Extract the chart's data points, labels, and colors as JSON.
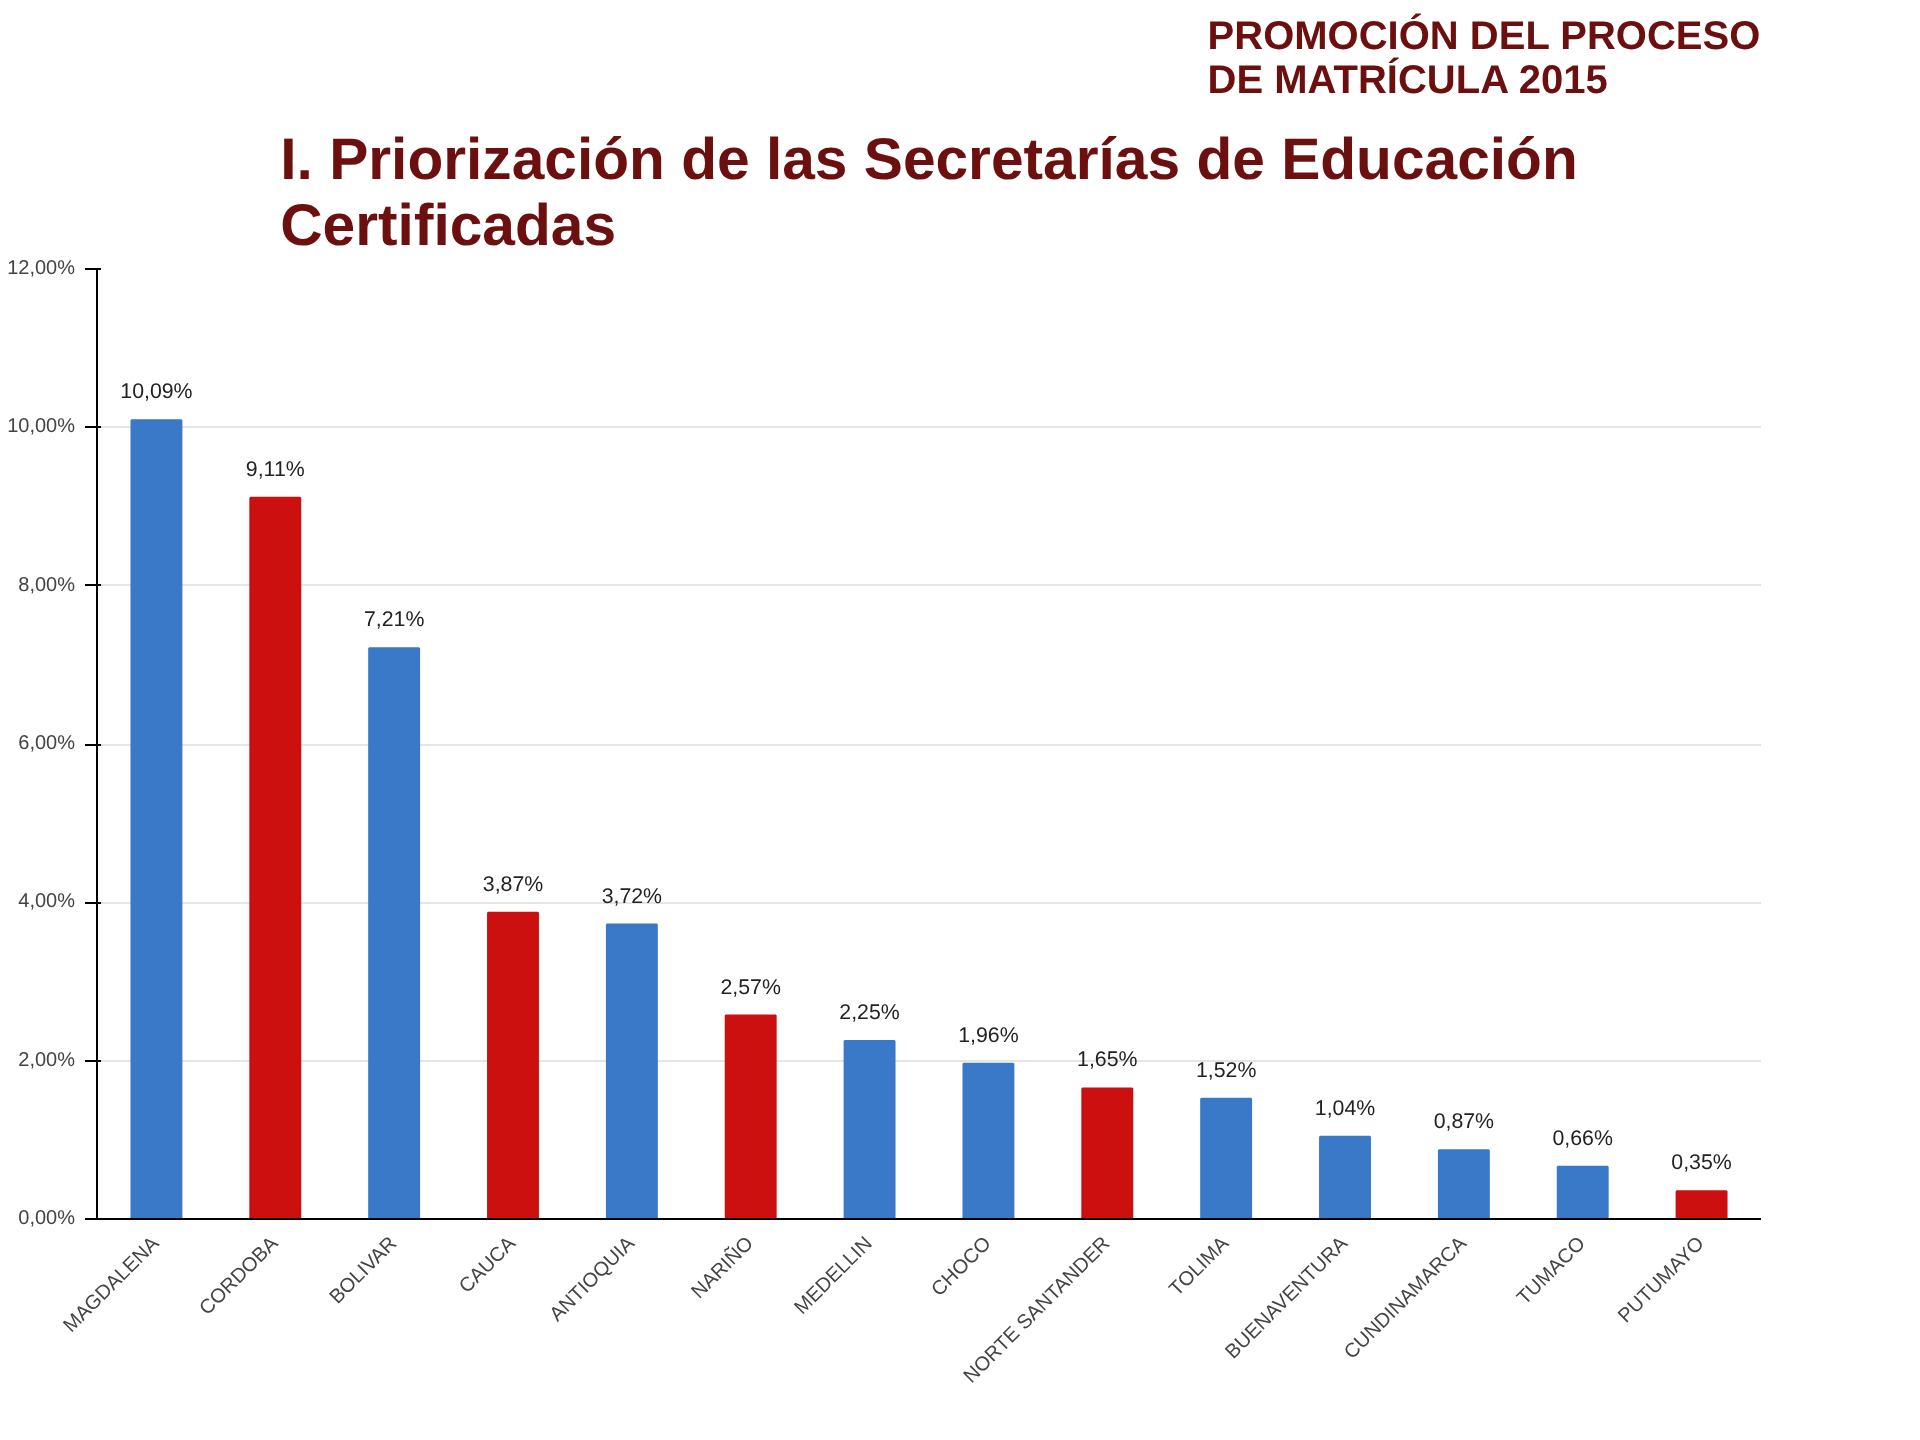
{
  "chart_data": {
    "type": "bar",
    "title": "PROMOCIÓN DEL PROCESO\nDE MATRÍCULA 2015",
    "subtitle": "I. Priorización de las Secretarías de Educación\nCertificadas",
    "categories": [
      "MAGDALENA",
      "CORDOBA",
      "BOLIVAR",
      "CAUCA",
      "ANTIOQUIA",
      "NARIÑO",
      "MEDELLIN",
      "CHOCO",
      "NORTE SANTANDER",
      "TOLIMA",
      "BUENAVENTURA",
      "CUNDINAMARCA",
      "TUMACO",
      "PUTUMAYO"
    ],
    "values": [
      10.09,
      9.11,
      7.21,
      3.87,
      3.72,
      2.57,
      2.25,
      1.96,
      1.65,
      1.52,
      1.04,
      0.87,
      0.66,
      0.35
    ],
    "colors": [
      "#3a78c8",
      "#cc1010",
      "#3a78c8",
      "#cc1010",
      "#3a78c8",
      "#cc1010",
      "#3a78c8",
      "#3a78c8",
      "#cc1010",
      "#3a78c8",
      "#3a78c8",
      "#3a78c8",
      "#3a78c8",
      "#cc1010"
    ],
    "value_labels": [
      "10,09%",
      "9,11%",
      "7,21%",
      "3,87%",
      "3,72%",
      "2,57%",
      "2,25%",
      "1,96%",
      "1,65%",
      "1,52%",
      "1,04%",
      "0,87%",
      "0,66%",
      "0,35%"
    ],
    "ylim": [
      0,
      12
    ],
    "yticks": [
      {
        "value": 0,
        "label": "0,00%"
      },
      {
        "value": 2,
        "label": "2,00%"
      },
      {
        "value": 4,
        "label": "4,00%"
      },
      {
        "value": 6,
        "label": "6,00%"
      },
      {
        "value": 8,
        "label": "8,00%"
      },
      {
        "value": 10,
        "label": "10,00%"
      },
      {
        "value": 12,
        "label": "12,00%"
      }
    ],
    "grid": "y"
  }
}
